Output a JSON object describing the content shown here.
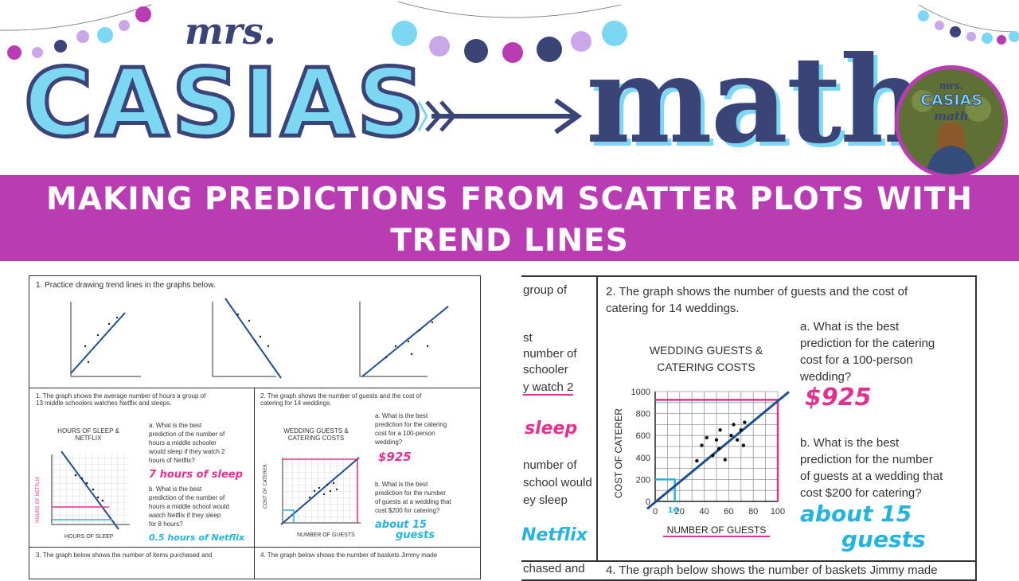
{
  "header": {
    "mrs": "mrs.",
    "casias": "CASIAS",
    "math": "math",
    "profile_logo_line1": "mrs.",
    "profile_logo_line2": "CASIAS",
    "profile_logo_line3": "math"
  },
  "banner": {
    "line1": "MAKING PREDICTIONS FROM SCATTER PLOTS WITH",
    "line2": "TREND LINES"
  },
  "colors": {
    "banner": "#b93cb3",
    "accent_blue": "#7cd7f3",
    "navy": "#3b4476",
    "pink_ink": "#e0338f",
    "blue_ink": "#27b4dc"
  },
  "left_ws": {
    "q1": "1. Practice drawing trend lines in the graphs below.",
    "q1b": "1. The graph shows the average number of hours a group of",
    "q1b2": "13 middle schoolers watches Netflix and sleeps.",
    "netflix_title1": "HOURS OF SLEEP &",
    "netflix_title2": "NETFLIX",
    "netflix_y": "HOURS OF NETFLIX",
    "netflix_x": "HOURS OF SLEEP",
    "netflix_a1": "a. What is the best",
    "netflix_a2": "prediction of the number of",
    "netflix_a3": "hours a middle schooler",
    "netflix_a4": "would sleep if they watch 2",
    "netflix_a5": "hours of Netflix?",
    "netflix_ans_a": "7 hours of sleep",
    "netflix_b1": "b. What is the best",
    "netflix_b2": "prediction of the number of",
    "netflix_b3": "hours a middle school would",
    "netflix_b4": "watch Netflix if they sleep",
    "netflix_b5": "for 8 hours?",
    "netflix_ans_b": "0.5 hours of Netflix",
    "q2": "2. The graph shows the number of guests and the cost of",
    "q2b": "catering for 14 weddings.",
    "wed_title1": "WEDDING GUESTS &",
    "wed_title2": "CATERING COSTS",
    "wed_y": "COST OF CATERER",
    "wed_x": "NUMBER OF GUESTS",
    "wed_a1": "a. What is the best",
    "wed_a2": "prediction for the catering",
    "wed_a3": "cost for a 100-person",
    "wed_a4": "wedding?",
    "wed_ans_a": "$925",
    "wed_b1": "b. What is the best",
    "wed_b2": "prediction for the number",
    "wed_b3": "of guests at a wedding that",
    "wed_b4": "cost $200 for catering?",
    "wed_ans_b1": "about 15",
    "wed_ans_b2": "guests",
    "q3": "3. The graph below shows the number of items purchased and",
    "q4": "4. The graph below shows the number of baskets Jimmy made"
  },
  "right_ws": {
    "left_col": [
      "group of",
      "st",
      "number of",
      "schooler",
      "y watch 2",
      "sleep",
      "number of",
      "school would",
      "ey sleep",
      "Netflix",
      "chased and"
    ],
    "q2a": "2. The graph shows the number of guests and the cost of",
    "q2b": "catering for 14 weddings.",
    "title1": "WEDDING GUESTS &",
    "title2": "CATERING COSTS",
    "ylabel": "COST OF CATERER",
    "xlabel": "NUMBER OF GUESTS",
    "y_ticks": [
      "1000",
      "800",
      "600",
      "400",
      "200",
      "0"
    ],
    "x_ticks": [
      "0",
      "20",
      "40",
      "60",
      "80",
      "100"
    ],
    "mark_16": "16",
    "a1": "a. What is the best",
    "a2": "prediction for the catering",
    "a3": "cost for a 100-person",
    "a4": "wedding?",
    "ans_a": "$925",
    "b1": "b. What is the best",
    "b2": "prediction for the number",
    "b3": "of guests at a wedding that",
    "b4": "cost $200 for catering?",
    "ans_b1": "about 15",
    "ans_b2": "guests",
    "q4": "4. The graph below shows the number of baskets Jimmy made"
  },
  "chart_data": {
    "type": "scatter",
    "title": "WEDDING GUESTS & CATERING COSTS",
    "xlabel": "NUMBER OF GUESTS",
    "ylabel": "COST OF CATERER",
    "xlim": [
      0,
      100
    ],
    "ylim": [
      0,
      1000
    ],
    "x": [
      34,
      38,
      42,
      47,
      50,
      52,
      53,
      57,
      62,
      64,
      67,
      70,
      72,
      73
    ],
    "y": [
      370,
      510,
      580,
      420,
      560,
      480,
      650,
      380,
      600,
      700,
      560,
      650,
      510,
      720
    ],
    "trend_line": {
      "x": [
        0,
        100
      ],
      "y": [
        20,
        925
      ]
    }
  }
}
